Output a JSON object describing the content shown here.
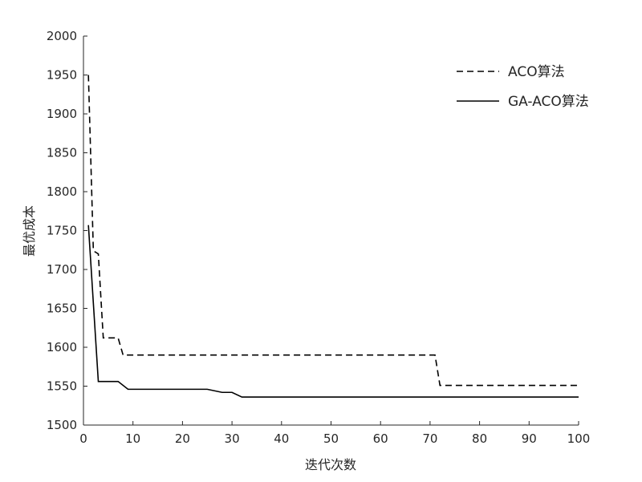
{
  "chart_data": {
    "type": "line",
    "title": "",
    "xlabel": "迭代次数",
    "ylabel": "最优成本",
    "xlim": [
      0,
      100
    ],
    "ylim": [
      1500,
      2000
    ],
    "xticks": [
      0,
      10,
      20,
      30,
      40,
      50,
      60,
      70,
      80,
      90,
      100
    ],
    "yticks": [
      1500,
      1550,
      1600,
      1650,
      1700,
      1750,
      1800,
      1850,
      1900,
      1950,
      2000
    ],
    "grid": false,
    "legend_position": "top-right",
    "series": [
      {
        "name": "ACO算法",
        "style": "dashed",
        "color": "#000000",
        "x": [
          1,
          2,
          3,
          4,
          7,
          8,
          71,
          72,
          100
        ],
        "y": [
          1950,
          1724,
          1720,
          1612,
          1612,
          1590,
          1590,
          1551,
          1551
        ]
      },
      {
        "name": "GA-ACO算法",
        "style": "solid",
        "color": "#000000",
        "x": [
          1,
          3,
          7,
          9,
          25,
          28,
          30,
          32,
          100
        ],
        "y": [
          1757,
          1556,
          1556,
          1546,
          1546,
          1542,
          1542,
          1536,
          1536
        ]
      }
    ]
  }
}
